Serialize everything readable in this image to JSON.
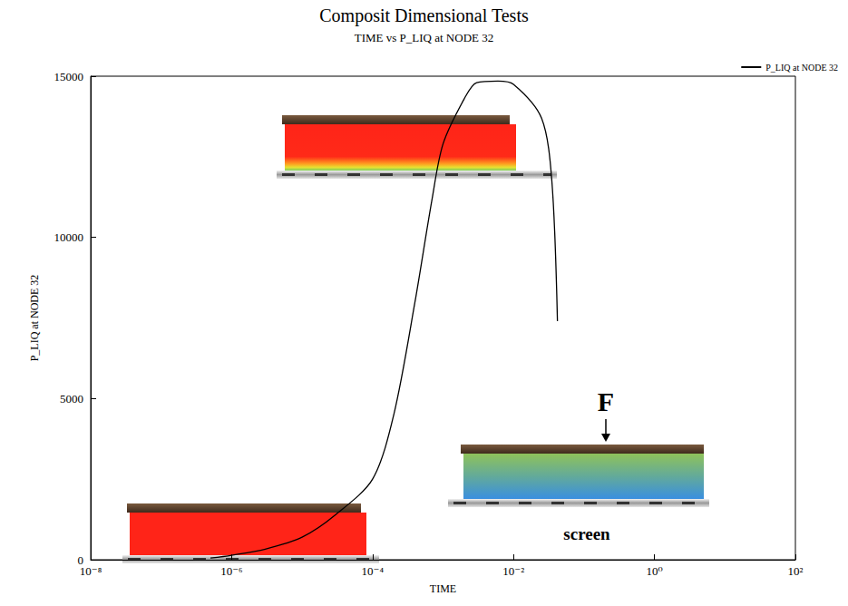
{
  "chart_data": {
    "type": "line",
    "title": "Composit Dimensional Tests",
    "subtitle": "TIME vs P_LIQ at NODE 32",
    "x_label": "TIME",
    "y_label": "P_LIQ at NODE 32",
    "x": [
      5e-07,
      1e-06,
      3e-06,
      1e-05,
      3e-05,
      0.0001,
      0.0002,
      0.0004,
      0.0007,
      0.001,
      0.002,
      0.003,
      0.006,
      0.01,
      0.025,
      0.035,
      0.042
    ],
    "series": [
      {
        "name": "P_LIQ at NODE 32",
        "color": "#000000",
        "values": [
          50,
          140,
          330,
          700,
          1400,
          2500,
          4500,
          8000,
          11200,
          12900,
          14300,
          14800,
          14850,
          14750,
          13700,
          11750,
          7400
        ]
      }
    ],
    "log": "x",
    "xlim": [
      1e-08,
      100
    ],
    "xticks": [
      {
        "value": 1e-08,
        "label": "10⁻⁸"
      },
      {
        "value": 1e-06,
        "label": "10⁻⁶"
      },
      {
        "value": 0.0001,
        "label": "10⁻⁴"
      },
      {
        "value": 0.01,
        "label": "10⁻²"
      },
      {
        "value": 1,
        "label": "10⁰"
      },
      {
        "value": 100,
        "label": "10²"
      }
    ],
    "ylim": [
      0,
      15000
    ],
    "yticks": [
      0,
      5000,
      10000,
      15000
    ],
    "grid": false,
    "legend": "upper right",
    "annotations": [
      "F",
      "screen"
    ]
  }
}
